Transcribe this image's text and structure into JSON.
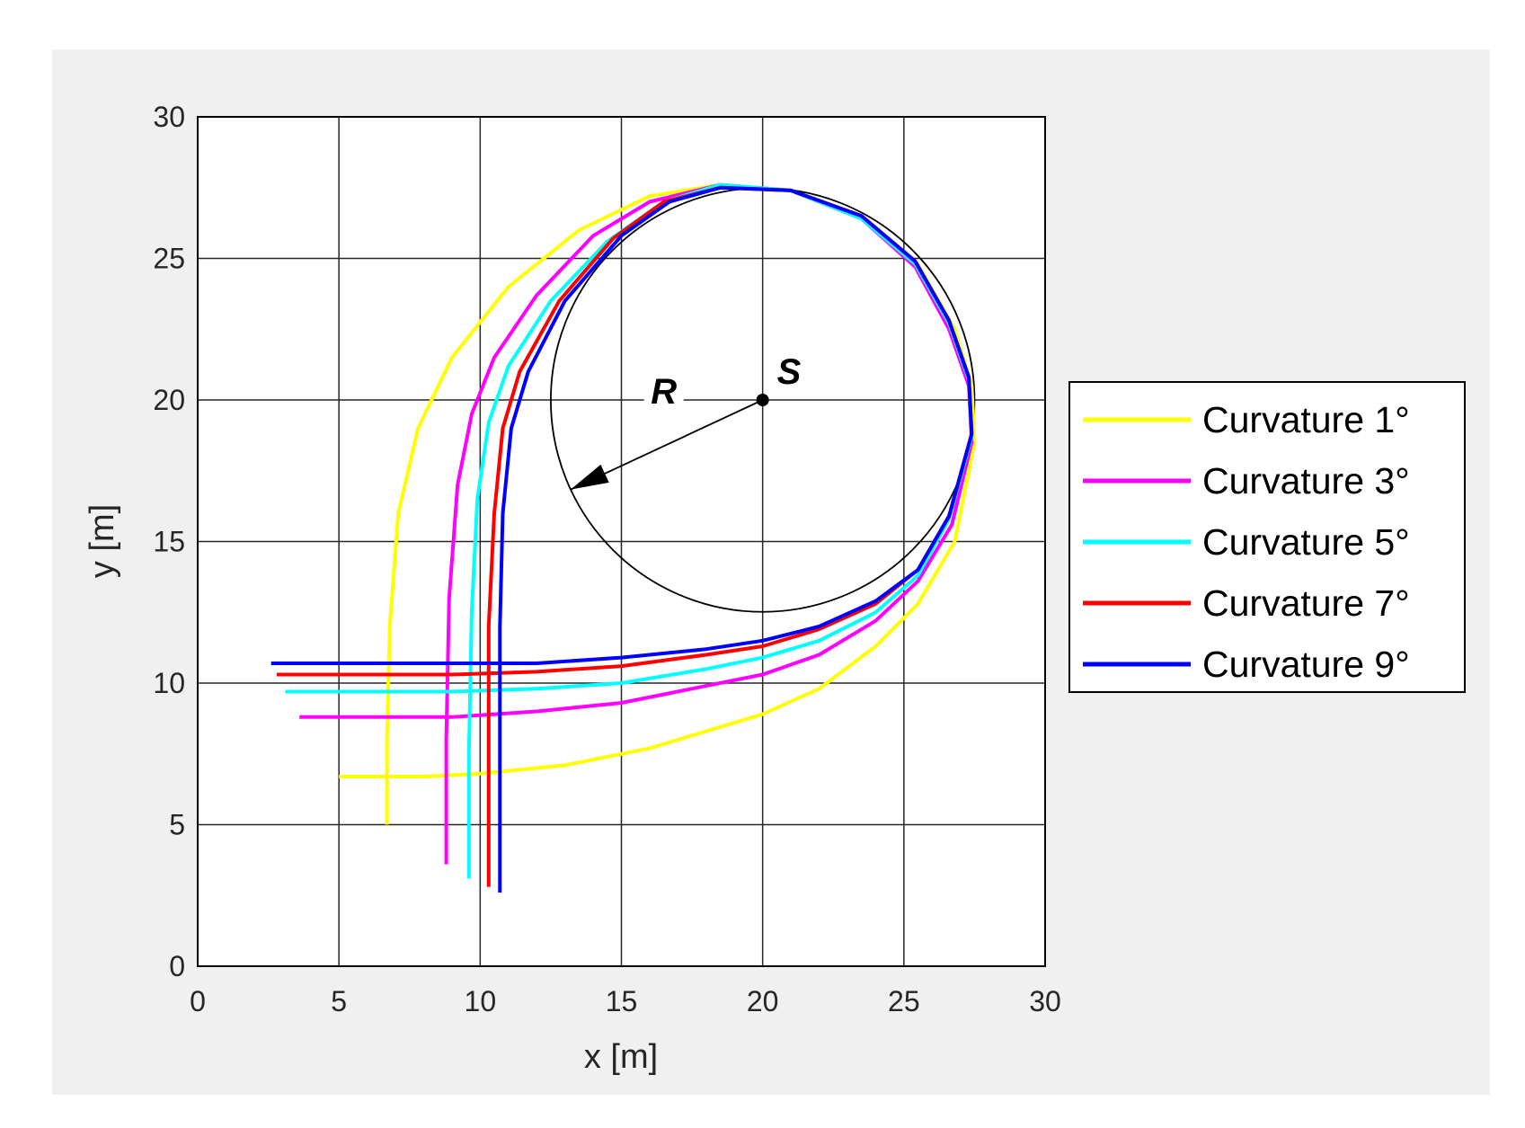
{
  "chart_data": {
    "type": "line",
    "title": "",
    "xlabel": "x [m]",
    "ylabel": "y [m]",
    "xlim": [
      0,
      30
    ],
    "ylim": [
      0,
      30
    ],
    "xticks": [
      "0",
      "5",
      "10",
      "15",
      "20",
      "25",
      "30"
    ],
    "yticks": [
      "0",
      "5",
      "10",
      "15",
      "20",
      "25",
      "30"
    ],
    "grid": true,
    "legend_position": "right",
    "circle": {
      "center": [
        20,
        20
      ],
      "radius": 7.5,
      "color": "#000000"
    },
    "annotations": [
      {
        "text": "S",
        "x": 20,
        "y": 20
      },
      {
        "text": "R",
        "x": 16.5,
        "y": 20
      }
    ],
    "series": [
      {
        "name": "Curvature 1°",
        "color": "#ffff00",
        "x": [
          5.0,
          8,
          10,
          13,
          16,
          18,
          20,
          22,
          24,
          25.5,
          26.8,
          27.5,
          27.4,
          26.8,
          25.5,
          23.5,
          21,
          18.5,
          16,
          13.5,
          11,
          9,
          7.8,
          7.1,
          6.8,
          6.7,
          6.7
        ],
        "y": [
          6.7,
          6.7,
          6.8,
          7.1,
          7.7,
          8.3,
          8.9,
          9.8,
          11.3,
          12.8,
          15.0,
          18.5,
          20.5,
          22.5,
          24.8,
          26.4,
          27.4,
          27.6,
          27.2,
          26.0,
          24.0,
          21.5,
          19.0,
          16.0,
          12.0,
          8.0,
          5.0
        ]
      },
      {
        "name": "Curvature 3°",
        "color": "#ff00ff",
        "x": [
          3.6,
          7,
          9,
          12,
          15,
          18,
          20,
          22,
          24,
          25.5,
          26.7,
          27.4,
          27.3,
          26.6,
          25.4,
          23.5,
          21,
          18.5,
          16,
          14,
          12,
          10.5,
          9.7,
          9.2,
          8.9,
          8.8,
          8.8
        ],
        "y": [
          8.8,
          8.8,
          8.8,
          9.0,
          9.3,
          9.9,
          10.3,
          11.0,
          12.2,
          13.6,
          15.6,
          18.5,
          20.5,
          22.5,
          24.7,
          26.4,
          27.4,
          27.6,
          27.0,
          25.8,
          23.7,
          21.5,
          19.5,
          17.0,
          13.0,
          8.0,
          3.6
        ]
      },
      {
        "name": "Curvature 5°",
        "color": "#00ffff",
        "x": [
          3.1,
          6,
          9,
          12,
          15,
          18,
          20,
          22,
          24,
          25.5,
          26.6,
          27.4,
          27.3,
          26.6,
          25.4,
          23.5,
          21,
          18.5,
          16.5,
          14.5,
          12.5,
          11,
          10.3,
          9.9,
          9.7,
          9.6,
          9.6
        ],
        "y": [
          9.7,
          9.7,
          9.7,
          9.8,
          10.0,
          10.5,
          10.9,
          11.5,
          12.5,
          13.8,
          15.8,
          18.7,
          20.7,
          22.7,
          24.8,
          26.4,
          27.4,
          27.6,
          27.0,
          25.6,
          23.5,
          21.2,
          19.2,
          16.5,
          12.5,
          7.5,
          3.1
        ]
      },
      {
        "name": "Curvature 7°",
        "color": "#ff0000",
        "x": [
          2.8,
          6,
          9,
          12,
          15,
          18,
          20,
          22,
          24,
          25.5,
          26.6,
          27.4,
          27.3,
          26.6,
          25.4,
          23.5,
          21,
          18.5,
          16.5,
          14.7,
          12.8,
          11.4,
          10.8,
          10.5,
          10.3,
          10.3,
          10.3
        ],
        "y": [
          10.3,
          10.3,
          10.3,
          10.4,
          10.6,
          11.0,
          11.3,
          11.9,
          12.8,
          14.0,
          15.9,
          18.8,
          20.8,
          22.8,
          24.9,
          26.5,
          27.4,
          27.5,
          27.0,
          25.7,
          23.5,
          21.0,
          19.0,
          16.0,
          12.0,
          7.0,
          2.8
        ]
      },
      {
        "name": "Curvature 9°",
        "color": "#0000ff",
        "x": [
          2.6,
          6,
          9,
          12,
          15,
          18,
          20,
          22,
          24,
          25.5,
          26.6,
          27.4,
          27.3,
          26.6,
          25.4,
          23.5,
          21,
          18.5,
          16.7,
          15,
          13,
          11.7,
          11.1,
          10.8,
          10.7,
          10.7,
          10.7
        ],
        "y": [
          10.7,
          10.7,
          10.7,
          10.7,
          10.9,
          11.2,
          11.5,
          12.0,
          12.9,
          14.0,
          15.9,
          18.8,
          20.8,
          22.8,
          24.9,
          26.5,
          27.4,
          27.5,
          27.0,
          25.8,
          23.5,
          21.0,
          19.0,
          16.0,
          12.0,
          7.0,
          2.6
        ]
      }
    ]
  }
}
